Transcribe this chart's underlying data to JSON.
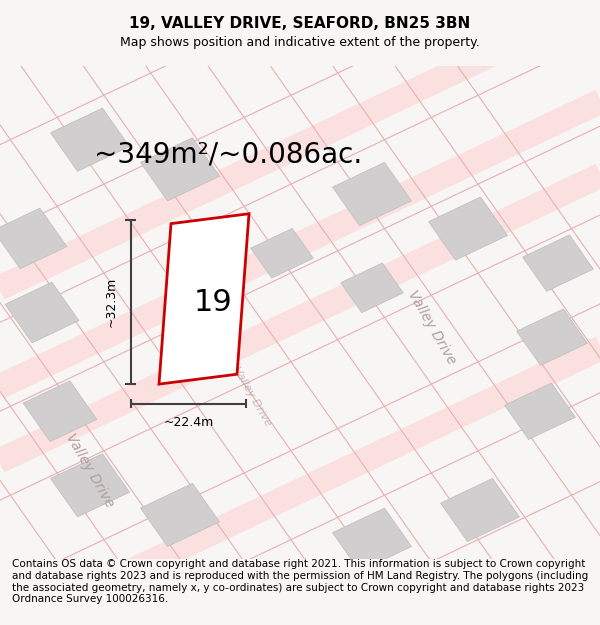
{
  "title": "19, VALLEY DRIVE, SEAFORD, BN25 3BN",
  "subtitle": "Map shows position and indicative extent of the property.",
  "area_label": "~349m²/~0.086ac.",
  "number_label": "19",
  "dim_width": "~22.4m",
  "dim_height": "~32.3m",
  "street_labels": [
    "Valley Drive",
    "Valley Drive",
    "Valley Drive"
  ],
  "footer_text": "Contains OS data © Crown copyright and database right 2021. This information is subject to Crown copyright and database rights 2023 and is reproduced with the permission of HM Land Registry. The polygons (including the associated geometry, namely x, y co-ordinates) are subject to Crown copyright and database rights 2023 Ordnance Survey 100026316.",
  "bg_color": "#f5f0f0",
  "map_bg": "#ffffff",
  "plot_color": "#ffffff",
  "plot_edge_color": "#cc0000",
  "grid_line_color": "#e8b0b0",
  "building_color": "#d0cece",
  "road_color": "#f0e8e8",
  "street_label_color": "#b0a0a0",
  "dim_line_color": "#404040",
  "title_fontsize": 11,
  "subtitle_fontsize": 9,
  "area_fontsize": 20,
  "number_fontsize": 22,
  "footer_fontsize": 7.5
}
